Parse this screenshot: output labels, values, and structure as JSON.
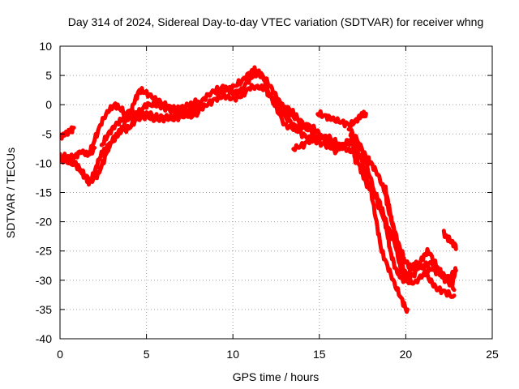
{
  "chart_data": {
    "type": "line",
    "title": "Day 314 of 2024, Sidereal Day-to-day VTEC variation (SDTVAR) for receiver whng",
    "xlabel": "GPS time / hours",
    "ylabel": "SDTVAR / TECUs",
    "xlim": [
      0,
      25
    ],
    "ylim": [
      -40,
      10
    ],
    "xticks": [
      0,
      5,
      10,
      15,
      20,
      25
    ],
    "yticks": [
      10,
      5,
      0,
      -5,
      -10,
      -15,
      -20,
      -25,
      -30,
      -35,
      -40
    ],
    "xtick_labels": [
      "0",
      "5",
      "10",
      "15",
      "20",
      "25"
    ],
    "ytick_labels": [
      "10",
      "5",
      "0",
      "-5",
      "-10",
      "-15",
      "-20",
      "-25",
      "-30",
      "-35",
      "-40"
    ],
    "grid": true,
    "legend": "none",
    "line_color": "#ff0000",
    "series": [
      {
        "name": "track-1",
        "points": [
          [
            0.0,
            -9.0
          ],
          [
            0.4,
            -8.8
          ],
          [
            0.8,
            -9.5
          ],
          [
            1.1,
            -11.0
          ],
          [
            1.5,
            -12.5
          ],
          [
            1.7,
            -13.5
          ],
          [
            2.0,
            -11.5
          ],
          [
            2.3,
            -9.0
          ],
          [
            2.6,
            -7.5
          ],
          [
            3.0,
            -6.5
          ],
          [
            3.5,
            -4.5
          ],
          [
            4.0,
            -2.0
          ],
          [
            4.3,
            0.5
          ],
          [
            4.6,
            2.5
          ],
          [
            5.0,
            2.0
          ],
          [
            5.5,
            1.0
          ],
          [
            6.0,
            0.0
          ],
          [
            6.5,
            -0.5
          ],
          [
            7.0,
            -1.5
          ],
          [
            7.5,
            -1.0
          ],
          [
            8.0,
            0.0
          ],
          [
            8.5,
            1.5
          ],
          [
            9.0,
            2.5
          ],
          [
            9.5,
            3.0
          ],
          [
            10.0,
            2.0
          ],
          [
            10.5,
            2.5
          ],
          [
            11.0,
            4.5
          ],
          [
            11.4,
            5.5
          ],
          [
            11.8,
            4.5
          ],
          [
            12.0,
            2.0
          ],
          [
            12.5,
            0.0
          ],
          [
            13.0,
            -2.0
          ],
          [
            13.5,
            -3.5
          ],
          [
            14.0,
            -4.0
          ],
          [
            14.5,
            -3.5
          ],
          [
            15.0,
            -5.0
          ],
          [
            15.5,
            -6.5
          ],
          [
            16.0,
            -7.0
          ],
          [
            16.5,
            -7.0
          ],
          [
            17.0,
            -6.0
          ],
          [
            17.5,
            -10.0
          ],
          [
            18.0,
            -15.0
          ],
          [
            18.3,
            -20.0
          ],
          [
            18.6,
            -25.0
          ],
          [
            19.0,
            -28.0
          ],
          [
            19.4,
            -31.0
          ],
          [
            19.8,
            -33.5
          ],
          [
            20.1,
            -35.5
          ]
        ]
      },
      {
        "name": "track-2",
        "points": [
          [
            0.0,
            -9.5
          ],
          [
            0.5,
            -9.8
          ],
          [
            1.0,
            -10.5
          ],
          [
            1.4,
            -12.0
          ],
          [
            1.8,
            -13.0
          ],
          [
            2.2,
            -12.0
          ],
          [
            2.6,
            -9.0
          ],
          [
            3.0,
            -6.0
          ],
          [
            3.5,
            -4.5
          ],
          [
            4.0,
            -4.0
          ],
          [
            4.4,
            -2.5
          ],
          [
            5.0,
            -2.0
          ],
          [
            5.5,
            -2.5
          ],
          [
            6.0,
            -2.0
          ],
          [
            6.5,
            -2.5
          ],
          [
            7.0,
            -2.0
          ],
          [
            7.5,
            -1.5
          ],
          [
            8.0,
            -1.0
          ],
          [
            8.5,
            0.0
          ],
          [
            9.0,
            1.0
          ],
          [
            9.5,
            1.5
          ],
          [
            10.0,
            1.0
          ],
          [
            10.5,
            1.5
          ],
          [
            11.0,
            3.0
          ],
          [
            11.5,
            3.0
          ],
          [
            12.0,
            2.5
          ],
          [
            12.5,
            -0.5
          ],
          [
            13.0,
            -3.5
          ],
          [
            13.5,
            -4.0
          ],
          [
            14.0,
            -5.0
          ],
          [
            14.5,
            -6.0
          ],
          [
            15.0,
            -6.5
          ],
          [
            15.5,
            -7.0
          ],
          [
            16.0,
            -8.0
          ],
          [
            16.5,
            -6.5
          ],
          [
            17.0,
            -5.5
          ],
          [
            17.5,
            -8.0
          ],
          [
            18.0,
            -13.0
          ],
          [
            18.5,
            -18.0
          ],
          [
            19.0,
            -21.0
          ],
          [
            19.4,
            -24.0
          ],
          [
            19.7,
            -28.0
          ],
          [
            20.0,
            -30.0
          ],
          [
            20.5,
            -30.5
          ],
          [
            21.0,
            -29.0
          ],
          [
            21.5,
            -28.0
          ],
          [
            22.0,
            -29.0
          ],
          [
            22.5,
            -29.5
          ],
          [
            22.9,
            -28.5
          ]
        ]
      },
      {
        "name": "track-3",
        "points": [
          [
            1.6,
            -9.0
          ],
          [
            2.0,
            -6.0
          ],
          [
            2.4,
            -3.0
          ],
          [
            2.8,
            -1.0
          ],
          [
            3.2,
            0.0
          ],
          [
            3.6,
            -1.0
          ],
          [
            4.0,
            -2.5
          ],
          [
            4.5,
            -1.5
          ],
          [
            5.0,
            0.0
          ],
          [
            5.5,
            0.0
          ],
          [
            6.0,
            -0.5
          ],
          [
            6.5,
            -1.0
          ],
          [
            7.0,
            -0.5
          ],
          [
            7.5,
            0.0
          ],
          [
            7.9,
            0.5
          ]
        ]
      },
      {
        "name": "track-4",
        "points": [
          [
            2.4,
            -7.0
          ],
          [
            2.8,
            -5.0
          ],
          [
            3.2,
            -3.5
          ],
          [
            3.6,
            -2.5
          ],
          [
            4.0,
            -1.0
          ],
          [
            4.5,
            -1.5
          ],
          [
            5.0,
            -1.5
          ],
          [
            5.5,
            -2.0
          ],
          [
            6.0,
            -2.5
          ],
          [
            6.5,
            -2.0
          ],
          [
            7.0,
            -1.5
          ],
          [
            7.5,
            -2.0
          ],
          [
            8.0,
            -1.5
          ]
        ]
      },
      {
        "name": "track-5",
        "points": [
          [
            9.0,
            2.0
          ],
          [
            9.5,
            2.5
          ],
          [
            10.0,
            3.0
          ],
          [
            10.5,
            4.0
          ],
          [
            11.0,
            5.5
          ],
          [
            11.3,
            6.0
          ],
          [
            11.7,
            5.0
          ],
          [
            12.2,
            3.0
          ],
          [
            12.6,
            1.0
          ],
          [
            13.0,
            -1.0
          ],
          [
            13.5,
            -2.0
          ],
          [
            14.0,
            -3.0
          ],
          [
            14.5,
            -4.5
          ],
          [
            14.8,
            -5.5
          ]
        ]
      },
      {
        "name": "track-6",
        "points": [
          [
            13.5,
            -7.5
          ],
          [
            14.0,
            -7.0
          ],
          [
            14.5,
            -6.0
          ],
          [
            15.0,
            -5.5
          ],
          [
            15.5,
            -5.5
          ],
          [
            16.0,
            -6.5
          ],
          [
            16.5,
            -7.5
          ],
          [
            16.9,
            -8.0
          ]
        ]
      },
      {
        "name": "track-7",
        "points": [
          [
            14.9,
            -1.5
          ],
          [
            15.4,
            -2.0
          ],
          [
            15.8,
            -2.5
          ],
          [
            16.3,
            -3.0
          ],
          [
            16.8,
            -3.5
          ],
          [
            17.2,
            -2.5
          ],
          [
            17.5,
            -1.5
          ],
          [
            17.7,
            -2.0
          ]
        ]
      },
      {
        "name": "track-8",
        "points": [
          [
            16.7,
            -4.0
          ],
          [
            17.2,
            -6.0
          ],
          [
            17.7,
            -9.0
          ],
          [
            18.0,
            -10.0
          ],
          [
            18.4,
            -12.0
          ],
          [
            18.8,
            -15.0
          ],
          [
            19.0,
            -18.0
          ],
          [
            19.3,
            -21.0
          ],
          [
            19.6,
            -24.0
          ],
          [
            20.0,
            -27.0
          ],
          [
            20.5,
            -28.0
          ],
          [
            21.0,
            -27.5
          ],
          [
            21.5,
            -27.0
          ],
          [
            22.0,
            -28.5
          ],
          [
            22.4,
            -30.0
          ],
          [
            22.8,
            -31.5
          ]
        ]
      },
      {
        "name": "track-9",
        "points": [
          [
            16.8,
            -5.0
          ],
          [
            17.0,
            -7.0
          ],
          [
            17.2,
            -9.5
          ],
          [
            17.5,
            -12.0
          ],
          [
            17.8,
            -14.0
          ],
          [
            18.1,
            -15.0
          ],
          [
            18.4,
            -16.0
          ],
          [
            18.7,
            -18.5
          ],
          [
            18.9,
            -21.5
          ],
          [
            19.1,
            -25.0
          ],
          [
            19.4,
            -28.0
          ],
          [
            19.7,
            -29.5
          ],
          [
            20.0,
            -30.0
          ],
          [
            20.3,
            -28.0
          ],
          [
            20.6,
            -27.0
          ],
          [
            21.0,
            -28.0
          ],
          [
            21.4,
            -30.0
          ],
          [
            21.8,
            -31.5
          ],
          [
            22.3,
            -32.0
          ],
          [
            22.8,
            -33.0
          ]
        ]
      },
      {
        "name": "track-10",
        "points": [
          [
            18.8,
            -14.0
          ],
          [
            19.0,
            -17.0
          ],
          [
            19.2,
            -20.0
          ],
          [
            19.5,
            -24.0
          ],
          [
            19.8,
            -27.5
          ],
          [
            20.1,
            -29.5
          ],
          [
            20.5,
            -29.0
          ],
          [
            21.0,
            -26.0
          ],
          [
            21.3,
            -25.0
          ],
          [
            21.7,
            -27.0
          ],
          [
            22.0,
            -29.0
          ],
          [
            22.3,
            -30.0
          ],
          [
            22.7,
            -30.5
          ],
          [
            22.9,
            -28.0
          ]
        ]
      },
      {
        "name": "track-11",
        "points": [
          [
            0.0,
            -5.5
          ],
          [
            0.3,
            -5.0
          ],
          [
            0.6,
            -4.5
          ],
          [
            0.8,
            -4.0
          ]
        ]
      },
      {
        "name": "track-12",
        "points": [
          [
            0.0,
            -8.8
          ],
          [
            0.4,
            -9.2
          ],
          [
            0.8,
            -9.0
          ],
          [
            1.2,
            -8.0
          ],
          [
            1.6,
            -8.5
          ],
          [
            2.0,
            -7.5
          ]
        ]
      },
      {
        "name": "track-13",
        "points": [
          [
            22.2,
            -22.0
          ],
          [
            22.5,
            -23.0
          ],
          [
            22.8,
            -24.0
          ],
          [
            22.9,
            -24.2
          ]
        ]
      },
      {
        "name": "track-14",
        "points": [
          [
            16.9,
            -5.0
          ],
          [
            17.0,
            -8.0
          ],
          [
            17.1,
            -10.0
          ]
        ]
      },
      {
        "name": "track-15",
        "points": [
          [
            12.2,
            1.5
          ],
          [
            12.6,
            0.0
          ],
          [
            13.0,
            -0.5
          ],
          [
            13.4,
            -1.0
          ],
          [
            13.8,
            -2.5
          ]
        ]
      }
    ]
  }
}
